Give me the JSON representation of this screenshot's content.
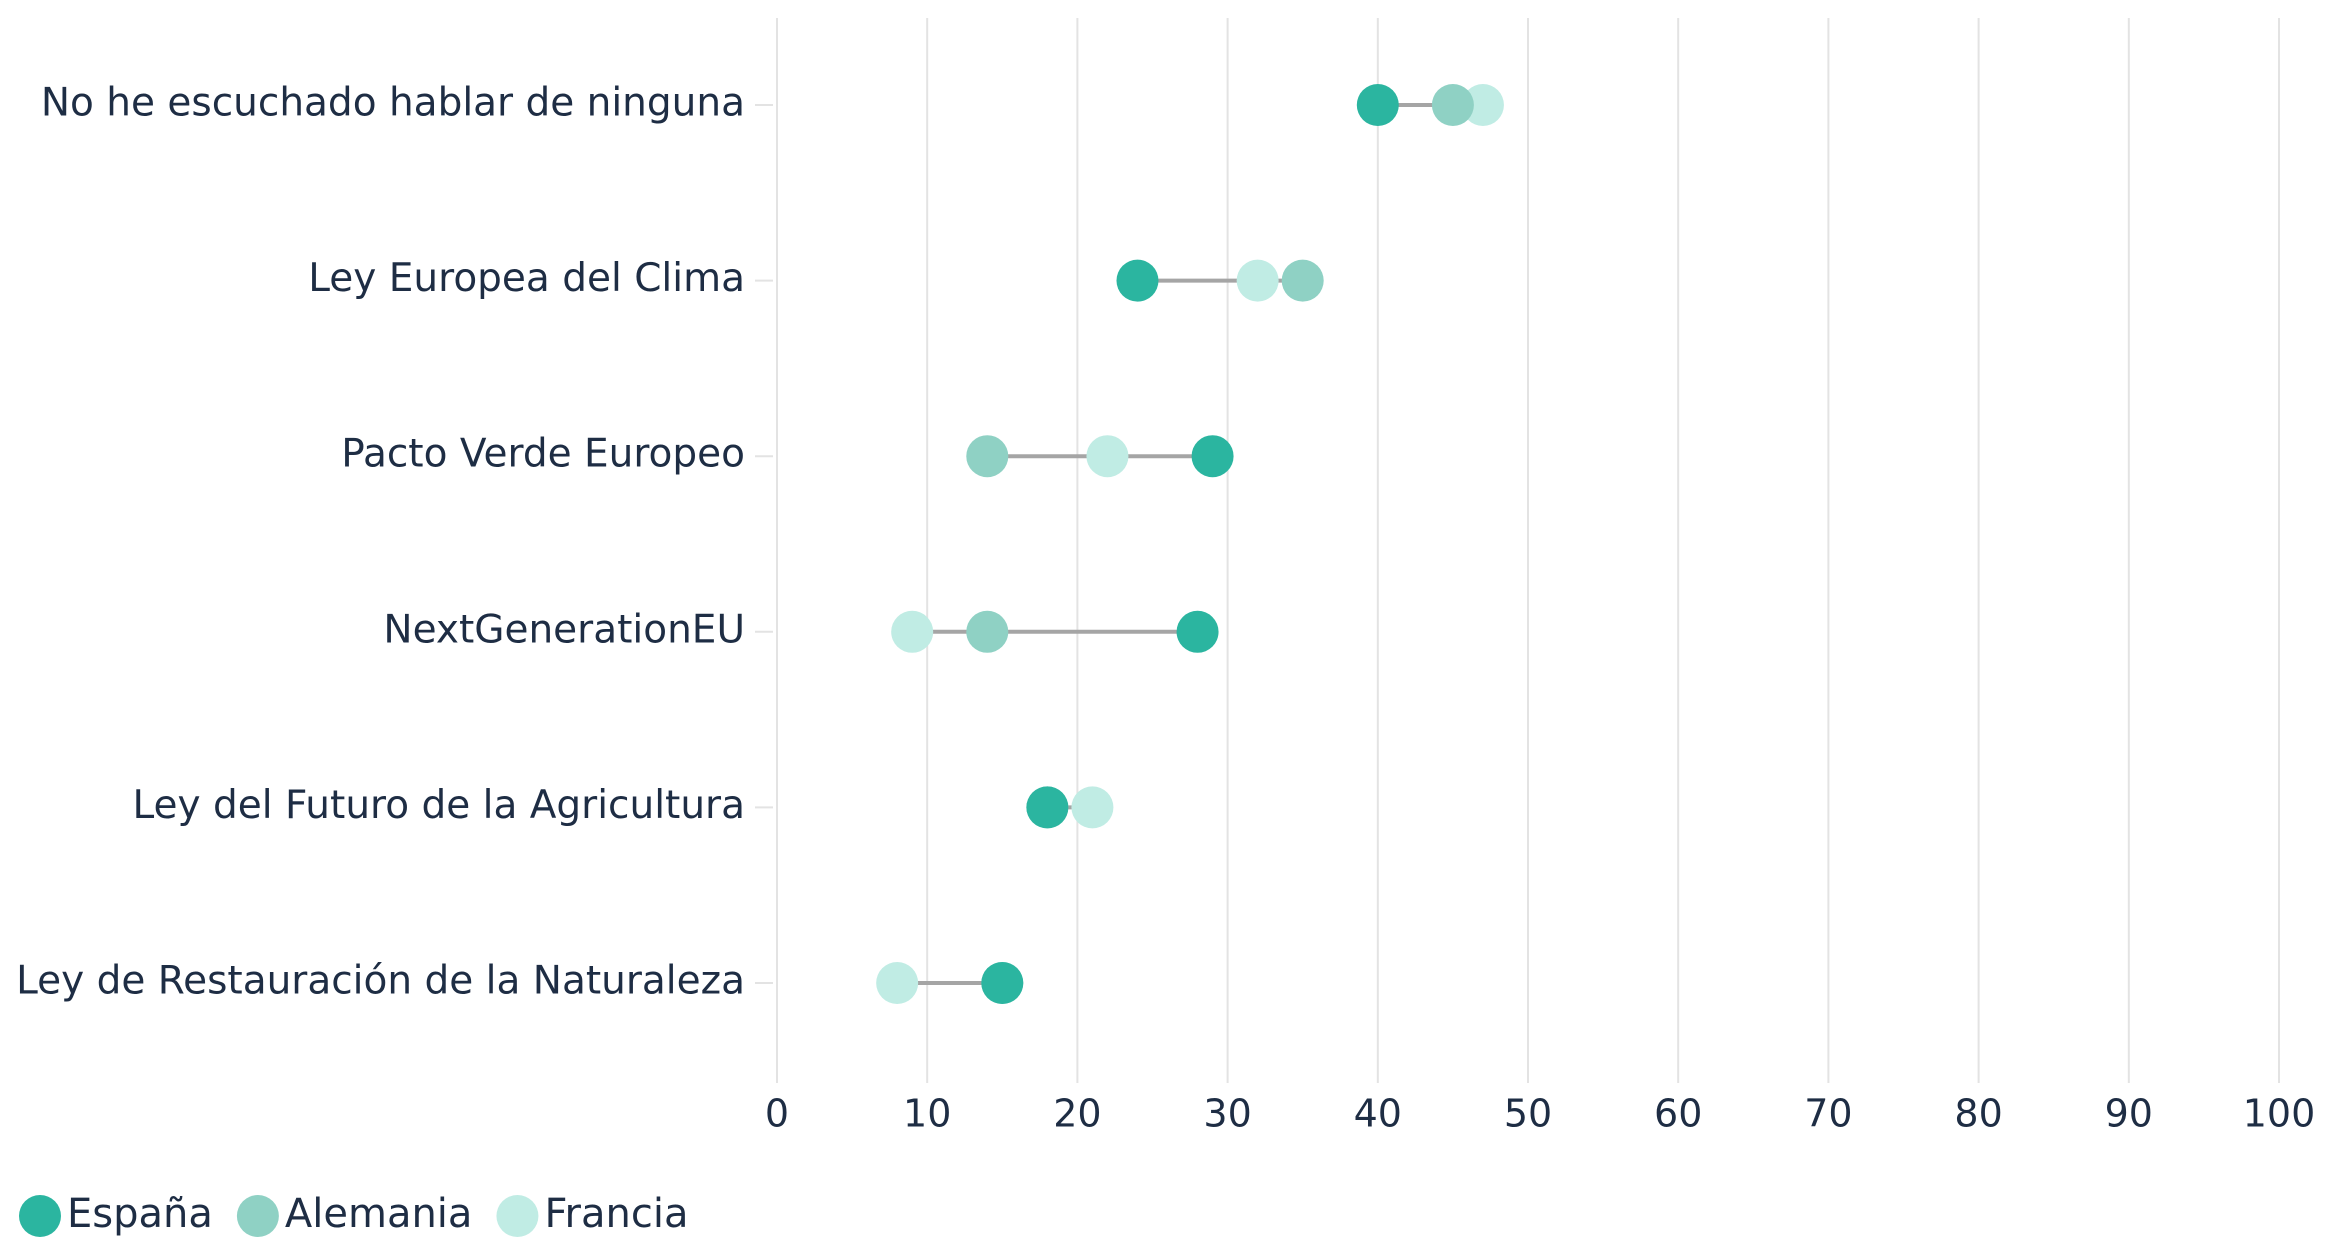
{
  "chart_data": {
    "type": "dumbbell",
    "categories": [
      "No he escuchado hablar de ninguna",
      "Ley Europea del Clima",
      "Pacto Verde Europeo",
      "NextGenerationEU",
      "Ley del Futuro de la Agricultura",
      "Ley de Restauración de la Naturaleza"
    ],
    "series": [
      {
        "name": "España",
        "color": "#2bb5a0",
        "values": [
          40,
          24,
          29,
          28,
          18,
          15
        ]
      },
      {
        "name": "Alemania",
        "color": "#8fd1c4",
        "values": [
          45,
          35,
          14,
          14,
          18,
          15
        ]
      },
      {
        "name": "Francia",
        "color": "#c0ece4",
        "values": [
          47,
          32,
          22,
          9,
          21,
          8
        ]
      }
    ],
    "xlim": [
      0,
      100
    ],
    "xticks": [
      0,
      10,
      20,
      30,
      40,
      50,
      60,
      70,
      80,
      90,
      100
    ],
    "grid": true
  }
}
